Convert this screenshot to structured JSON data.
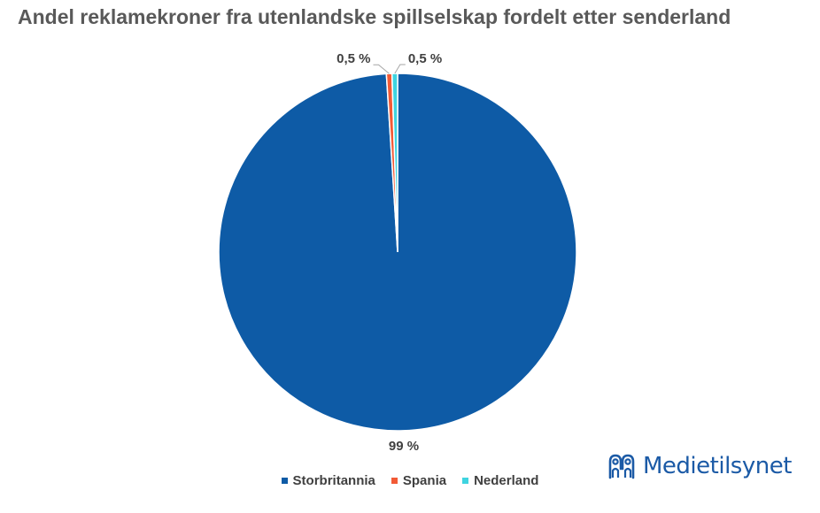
{
  "chart_data": {
    "type": "pie",
    "title": "Andel reklamekroner fra utenlandske spillselskap fordelt etter senderland",
    "slices": [
      {
        "name": "Storbritannia",
        "value": 99,
        "label": "99 %",
        "color": "#0e5ba6"
      },
      {
        "name": "Spania",
        "value": 0.5,
        "label": "0,5 %",
        "color": "#f25a36"
      },
      {
        "name": "Nederland",
        "value": 0.5,
        "label": "0,5 %",
        "color": "#3fd4e0"
      }
    ],
    "legend_position": "bottom"
  },
  "brand": {
    "logo_text": "Medietilsynet",
    "logo_icon": "medietilsynet-logo-icon",
    "color": "#1b5aa6"
  }
}
